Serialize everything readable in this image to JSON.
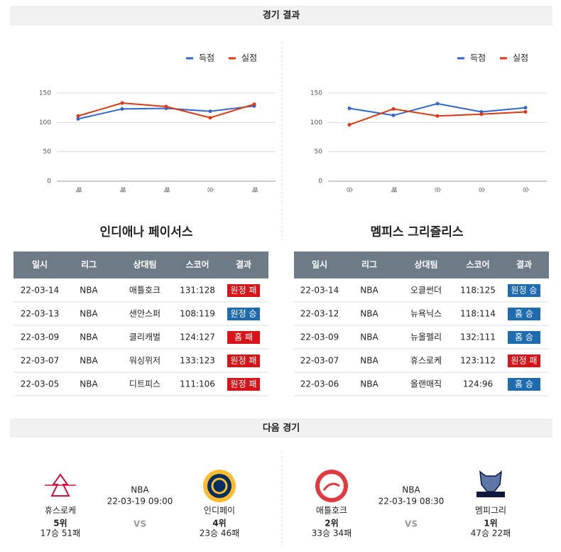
{
  "results_section": {
    "title": "경기 결과"
  },
  "chart_data": [
    {
      "type": "line",
      "categories": [
        "패",
        "패",
        "패",
        "승",
        "패"
      ],
      "series": [
        {
          "name": "득점",
          "color": "#3366cc",
          "values": [
            106,
            123,
            124,
            119,
            128
          ]
        },
        {
          "name": "실점",
          "color": "#dc3912",
          "values": [
            111,
            133,
            127,
            108,
            131
          ]
        }
      ],
      "ylim": [
        0,
        150
      ],
      "yticks": [
        0,
        50,
        100,
        150
      ],
      "grid": true,
      "legend": "top-right"
    },
    {
      "type": "line",
      "categories": [
        "승",
        "패",
        "승",
        "승",
        "승"
      ],
      "series": [
        {
          "name": "득점",
          "color": "#3366cc",
          "values": [
            124,
            112,
            132,
            118,
            125
          ]
        },
        {
          "name": "실점",
          "color": "#dc3912",
          "values": [
            96,
            123,
            111,
            114,
            118
          ]
        }
      ],
      "ylim": [
        0,
        150
      ],
      "yticks": [
        0,
        50,
        100,
        150
      ],
      "grid": true,
      "legend": "top-right"
    }
  ],
  "tables": [
    {
      "team": "인디애나 페이서스",
      "header": [
        "일시",
        "리그",
        "상대팀",
        "스코어",
        "결과"
      ],
      "rows": [
        [
          "22-03-14",
          "NBA",
          "애틀호크",
          "131:128",
          "원정 패"
        ],
        [
          "22-03-13",
          "NBA",
          "샌안스퍼",
          "108:119",
          "원정 승"
        ],
        [
          "22-03-09",
          "NBA",
          "클리캐벌",
          "124:127",
          "홈 패"
        ],
        [
          "22-03-07",
          "NBA",
          "워싱위저",
          "133:123",
          "원정 패"
        ],
        [
          "22-03-05",
          "NBA",
          "디트피스",
          "111:106",
          "원정 패"
        ]
      ],
      "result_colors": [
        "#d7141a",
        "#1f6bb0",
        "#d7141a",
        "#d7141a",
        "#d7141a"
      ]
    },
    {
      "team": "멤피스 그리즐리스",
      "header": [
        "일시",
        "리그",
        "상대팀",
        "스코어",
        "결과"
      ],
      "rows": [
        [
          "22-03-14",
          "NBA",
          "오클썬더",
          "118:125",
          "원정 승"
        ],
        [
          "22-03-12",
          "NBA",
          "뉴욕닉스",
          "118:114",
          "홈 승"
        ],
        [
          "22-03-09",
          "NBA",
          "뉴올펠리",
          "132:111",
          "홈 승"
        ],
        [
          "22-03-07",
          "NBA",
          "휴스로케",
          "123:112",
          "원정 패"
        ],
        [
          "22-03-06",
          "NBA",
          "올랜매직",
          "124:96",
          "홈 승"
        ]
      ],
      "result_colors": [
        "#1f6bb0",
        "#1f6bb0",
        "#1f6bb0",
        "#d7141a",
        "#1f6bb0"
      ]
    }
  ],
  "next_section": {
    "title": "다음 경기"
  },
  "next_games": [
    {
      "league": "NBA",
      "datetime": "22-03-19 09:00",
      "vs": "VS",
      "home": {
        "name": "휴스로케",
        "rank": "5위",
        "record": "17승 51패"
      },
      "away": {
        "name": "인디페이",
        "rank": "4위",
        "record": "23승 46패"
      }
    },
    {
      "league": "NBA",
      "datetime": "22-03-19 08:30",
      "vs": "VS",
      "home": {
        "name": "애틀호크",
        "rank": "2위",
        "record": "33승 34패"
      },
      "away": {
        "name": "멤피그리",
        "rank": "1위",
        "record": "47승 22패"
      }
    }
  ]
}
